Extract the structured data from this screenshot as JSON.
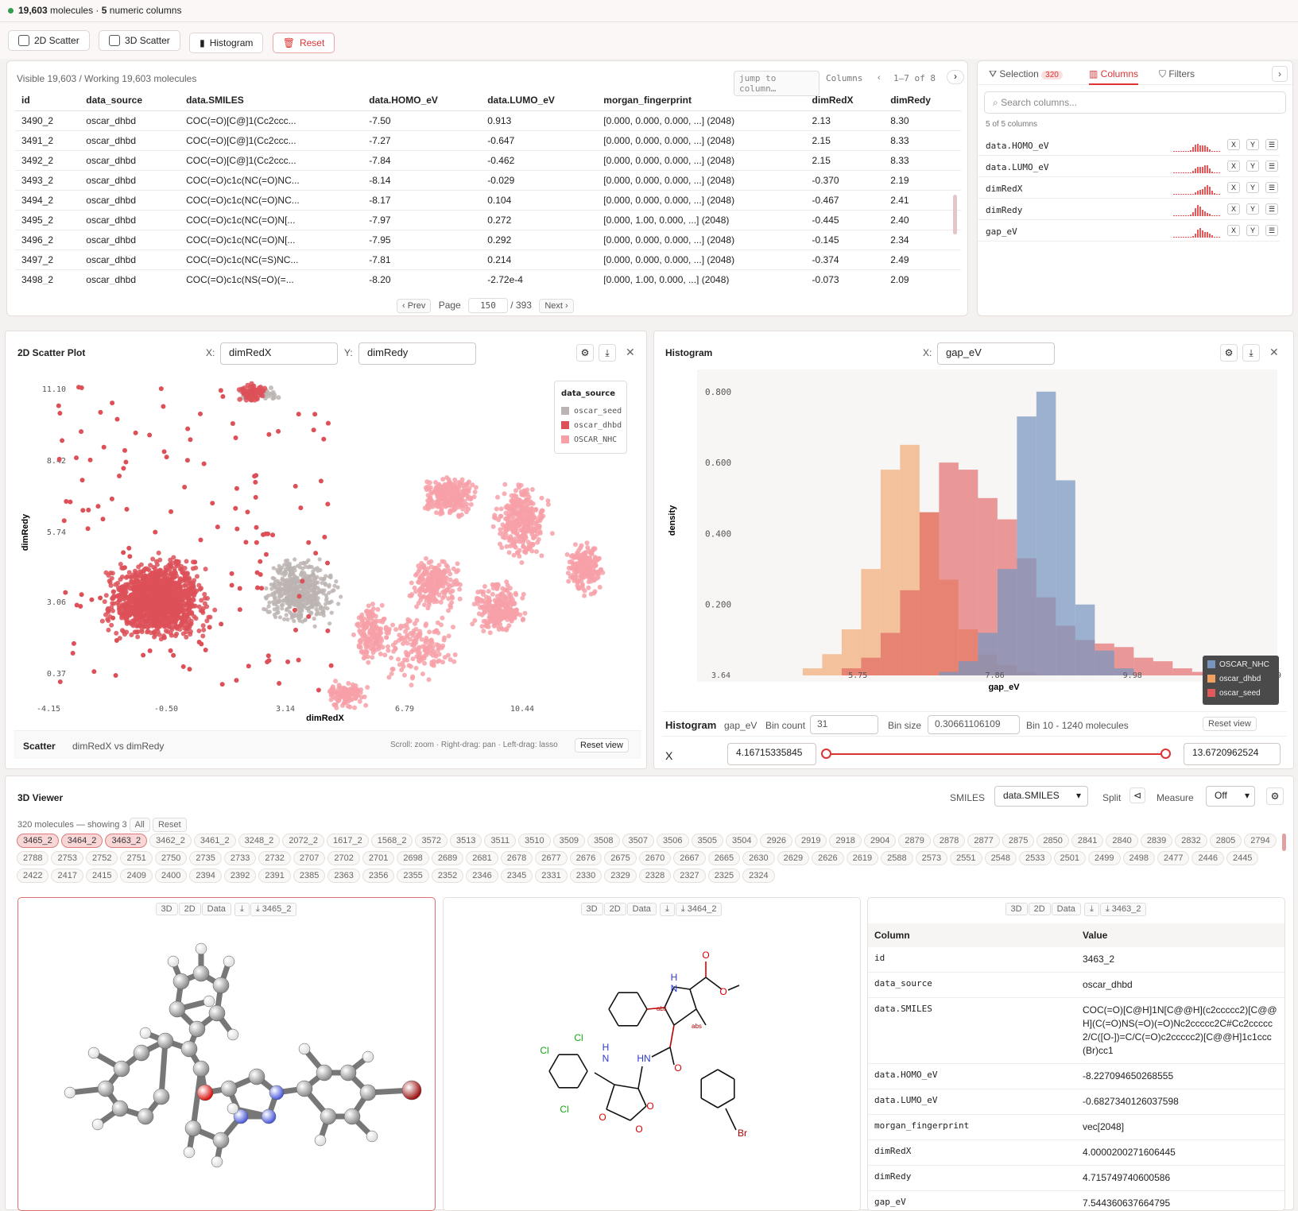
{
  "top": {
    "count": "19,603",
    "count_label": "molecules ·",
    "numeric": "5",
    "numeric_label": "numeric columns"
  },
  "toolbar": {
    "scatter2d": "2D Scatter",
    "scatter3d": "3D Scatter",
    "histogram": "Histogram",
    "reset": "Reset"
  },
  "table": {
    "visible": "Visible 19,603 / Working 19,603 molecules",
    "jump_placeholder": "jump to column…",
    "columns_label": "Columns",
    "range": "1–7 of 8",
    "headers": [
      "id",
      "data_source",
      "data.SMILES",
      "data.HOMO_eV",
      "data.LUMO_eV",
      "morgan_fingerprint",
      "dimRedX",
      "dimRedy"
    ],
    "rows": [
      [
        "3490_2",
        "oscar_dhbd",
        "COC(=O)[C@]1(Cc2ccc...",
        "-7.50",
        "0.913",
        "[0.000, 0.000, 0.000, ...] (2048)",
        "2.13",
        "8.30"
      ],
      [
        "3491_2",
        "oscar_dhbd",
        "COC(=O)[C@]1(Cc2ccc...",
        "-7.27",
        "-0.647",
        "[0.000, 0.000, 0.000, ...] (2048)",
        "2.15",
        "8.33"
      ],
      [
        "3492_2",
        "oscar_dhbd",
        "COC(=O)[C@]1(Cc2ccc...",
        "-7.84",
        "-0.462",
        "[0.000, 0.000, 0.000, ...] (2048)",
        "2.15",
        "8.33"
      ],
      [
        "3493_2",
        "oscar_dhbd",
        "COC(=O)c1c(NC(=O)NC...",
        "-8.14",
        "-0.029",
        "[0.000, 0.000, 0.000, ...] (2048)",
        "-0.370",
        "2.19"
      ],
      [
        "3494_2",
        "oscar_dhbd",
        "COC(=O)c1c(NC(=O)NC...",
        "-8.17",
        "0.104",
        "[0.000, 0.000, 0.000, ...] (2048)",
        "-0.467",
        "2.41"
      ],
      [
        "3495_2",
        "oscar_dhbd",
        "COC(=O)c1c(NC(=O)N[...",
        "-7.97",
        "0.272",
        "[0.000, 1.00, 0.000, ...] (2048)",
        "-0.445",
        "2.40"
      ],
      [
        "3496_2",
        "oscar_dhbd",
        "COC(=O)c1c(NC(=O)N[...",
        "-7.95",
        "0.292",
        "[0.000, 0.000, 0.000, ...] (2048)",
        "-0.145",
        "2.34"
      ],
      [
        "3497_2",
        "oscar_dhbd",
        "COC(=O)c1c(NC(=S)NC...",
        "-7.81",
        "0.214",
        "[0.000, 0.000, 0.000, ...] (2048)",
        "-0.374",
        "2.49"
      ],
      [
        "3498_2",
        "oscar_dhbd",
        "COC(=O)c1c(NS(=O)(=...",
        "-8.20",
        "-2.72e-4",
        "[0.000, 1.00, 0.000, ...] (2048)",
        "-0.073",
        "2.09"
      ]
    ],
    "prev": "‹ Prev",
    "page_label": "Page",
    "page": "150",
    "total": "/ 393",
    "next": "Next ›"
  },
  "side": {
    "tabs": [
      "Selection",
      "Columns",
      "Filters"
    ],
    "sel_count": "320",
    "search_placeholder": "Search columns...",
    "count": "5 of 5 columns",
    "cols": [
      "data.HOMO_eV",
      "data.LUMO_eV",
      "dimRedX",
      "dimRedy",
      "gap_eV"
    ],
    "x": "X",
    "y": "Y"
  },
  "scatter": {
    "title": "2D Scatter Plot",
    "x_label": "X:",
    "x_value": "dimRedX",
    "y_label": "Y:",
    "y_value": "dimRedy",
    "legend_title": "data_source",
    "legend": [
      "oscar_seed",
      "oscar_dhbd",
      "OSCAR_NHC"
    ],
    "legend_colors": [
      "#bcb4b2",
      "#dd5058",
      "#f7a0a8"
    ],
    "footer_title": "Scatter",
    "footer_sub": "dimRedX vs dimRedy",
    "hint": "Scroll: zoom · Right-drag: pan · Left-drag: lasso",
    "reset": "Reset view"
  },
  "hist": {
    "title": "Histogram",
    "x_label": "X:",
    "x_value": "gap_eV",
    "legend": [
      "OSCAR_NHC",
      "oscar_dhbd",
      "oscar_seed"
    ],
    "legend_colors": [
      "#7895c0",
      "#f0a060",
      "#e05858"
    ],
    "footer_title": "Histogram",
    "footer_col": "gap_eV",
    "bin_count_label": "Bin count",
    "bin_count": "31",
    "bin_size_label": "Bin size",
    "bin_size": "0.30661106109",
    "bin_info": "Bin 10 - 1240 molecules",
    "reset": "Reset view",
    "range_label": "X",
    "range_min": "4.16715335845",
    "range_max": "13.6720962524"
  },
  "viewer": {
    "title": "3D Viewer",
    "smiles_label": "SMILES",
    "smiles_value": "data.SMILES",
    "split_label": "Split",
    "measure_label": "Measure",
    "measure_value": "Off",
    "mol_info": "320 molecules — showing 3",
    "all": "All",
    "reset": "Reset",
    "chips": [
      "3465_2",
      "3464_2",
      "3463_2",
      "3462_2",
      "3461_2",
      "3248_2",
      "2072_2",
      "1617_2",
      "1568_2",
      "3572",
      "3513",
      "3511",
      "3510",
      "3509",
      "3508",
      "3507",
      "3506",
      "3505",
      "3504",
      "2926",
      "2919",
      "2918",
      "2904",
      "2879",
      "2878",
      "2877",
      "2875",
      "2850",
      "2841",
      "2840",
      "2839",
      "2832",
      "2805",
      "2794",
      "2788",
      "2753",
      "2752",
      "2751",
      "2750",
      "2735",
      "2733",
      "2732",
      "2707",
      "2702",
      "2701",
      "2698",
      "2689",
      "2681",
      "2678",
      "2677",
      "2676",
      "2675",
      "2670",
      "2667",
      "2665",
      "2630",
      "2629",
      "2626",
      "2619",
      "2588",
      "2573",
      "2551",
      "2548",
      "2533",
      "2501",
      "2499",
      "2498",
      "2477",
      "2446",
      "2445",
      "2422",
      "2417",
      "2415",
      "2409",
      "2400",
      "2394",
      "2392",
      "2391",
      "2385",
      "2363",
      "2356",
      "2355",
      "2352",
      "2346",
      "2345",
      "2331",
      "2330",
      "2329",
      "2328",
      "2327",
      "2325",
      "2324"
    ],
    "card_tabs": [
      "3D",
      "2D",
      "Data"
    ],
    "cards": [
      "3465_2",
      "3464_2",
      "3463_2"
    ],
    "data_header": [
      "Column",
      "Value"
    ],
    "data_rows": [
      [
        "id",
        "3463_2"
      ],
      [
        "data_source",
        "oscar_dhbd"
      ],
      [
        "data.SMILES",
        "COC(=O)[C@H]1N[C@@H](c2ccccc2)[C@@H](C(=O)NS(=O)(=O)Nc2ccccc2C#Cc2ccccc2/C([O-])=C/C(=O)c2ccccc2)[C@@H]1c1ccc(Br)cc1"
      ],
      [
        "data.HOMO_eV",
        "-8.227094650268555"
      ],
      [
        "data.LUMO_eV",
        "-0.6827340126037598"
      ],
      [
        "morgan_fingerprint",
        "vec[2048]"
      ],
      [
        "dimRedX",
        "4.0000200271606445"
      ],
      [
        "dimRedy",
        "4.715749740600586"
      ],
      [
        "gap_eV",
        "7.544360637664795"
      ]
    ]
  },
  "chart_data": [
    {
      "type": "scatter",
      "title": "2D Scatter Plot",
      "xlabel": "dimRedX",
      "ylabel": "dimRedy",
      "x_ticks": [
        "-4.15",
        "-0.50",
        "3.14",
        "6.79",
        "10.44"
      ],
      "y_ticks": [
        "11.10",
        "8.42",
        "5.74",
        "3.06",
        "0.37"
      ],
      "series": [
        {
          "name": "oscar_seed"
        },
        {
          "name": "oscar_dhbd"
        },
        {
          "name": "OSCAR_NHC"
        }
      ]
    },
    {
      "type": "bar",
      "title": "Histogram",
      "xlabel": "gap_eV",
      "ylabel": "density",
      "x_ticks": [
        "3.64",
        "5.75",
        "7.86",
        "9.98",
        "12.09"
      ],
      "y_ticks": [
        "0.800",
        "0.600",
        "0.400",
        "0.200"
      ],
      "xlim": [
        3.64,
        12.09
      ],
      "ylim": [
        0,
        0.84
      ],
      "series": [
        {
          "name": "oscar_dhbd",
          "bins": [
            [
              4.9,
              5.2,
              0.02
            ],
            [
              5.2,
              5.5,
              0.06
            ],
            [
              5.5,
              5.8,
              0.13
            ],
            [
              5.8,
              6.1,
              0.3
            ],
            [
              6.1,
              6.4,
              0.58
            ],
            [
              6.4,
              6.7,
              0.65
            ],
            [
              6.7,
              7.0,
              0.46
            ],
            [
              7.0,
              7.3,
              0.27
            ],
            [
              7.3,
              7.6,
              0.13
            ],
            [
              7.6,
              7.9,
              0.06
            ],
            [
              7.9,
              8.2,
              0.03
            ],
            [
              8.2,
              8.5,
              0.01
            ]
          ]
        },
        {
          "name": "oscar_seed",
          "bins": [
            [
              5.5,
              5.8,
              0.02
            ],
            [
              5.8,
              6.1,
              0.05
            ],
            [
              6.1,
              6.4,
              0.12
            ],
            [
              6.4,
              6.7,
              0.24
            ],
            [
              6.7,
              7.0,
              0.46
            ],
            [
              7.0,
              7.3,
              0.6
            ],
            [
              7.3,
              7.6,
              0.58
            ],
            [
              7.6,
              7.9,
              0.5
            ],
            [
              7.9,
              8.2,
              0.44
            ],
            [
              8.2,
              8.5,
              0.33
            ],
            [
              8.5,
              8.8,
              0.22
            ],
            [
              8.8,
              9.1,
              0.14
            ],
            [
              9.1,
              9.4,
              0.1
            ],
            [
              9.4,
              9.7,
              0.09
            ],
            [
              9.7,
              10.0,
              0.08
            ],
            [
              10.0,
              10.3,
              0.05
            ],
            [
              10.3,
              10.6,
              0.04
            ],
            [
              10.6,
              10.9,
              0.02
            ],
            [
              10.9,
              11.2,
              0.01
            ]
          ]
        },
        {
          "name": "OSCAR_NHC",
          "bins": [
            [
              7.0,
              7.3,
              0.01
            ],
            [
              7.3,
              7.6,
              0.04
            ],
            [
              7.6,
              7.9,
              0.12
            ],
            [
              7.9,
              8.2,
              0.3
            ],
            [
              8.2,
              8.5,
              0.73
            ],
            [
              8.5,
              8.8,
              0.8
            ],
            [
              8.8,
              9.1,
              0.55
            ],
            [
              9.1,
              9.4,
              0.2
            ],
            [
              9.4,
              9.7,
              0.07
            ],
            [
              9.7,
              10.0,
              0.02
            ]
          ]
        }
      ]
    }
  ]
}
